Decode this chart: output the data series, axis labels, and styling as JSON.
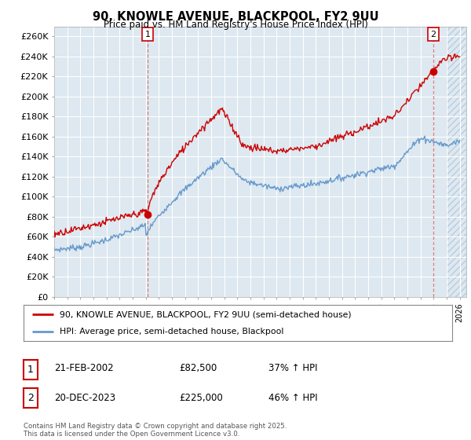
{
  "title": "90, KNOWLE AVENUE, BLACKPOOL, FY2 9UU",
  "subtitle": "Price paid vs. HM Land Registry's House Price Index (HPI)",
  "ylabel_ticks": [
    "£0",
    "£20K",
    "£40K",
    "£60K",
    "£80K",
    "£100K",
    "£120K",
    "£140K",
    "£160K",
    "£180K",
    "£200K",
    "£220K",
    "£240K",
    "£260K"
  ],
  "ytick_values": [
    0,
    20000,
    40000,
    60000,
    80000,
    100000,
    120000,
    140000,
    160000,
    180000,
    200000,
    220000,
    240000,
    260000
  ],
  "ylim": [
    0,
    270000
  ],
  "xlim_start": 1995.0,
  "xlim_end": 2026.5,
  "line1_label": "90, KNOWLE AVENUE, BLACKPOOL, FY2 9UU (semi-detached house)",
  "line2_label": "HPI: Average price, semi-detached house, Blackpool",
  "point1_date": "21-FEB-2002",
  "point1_price": "£82,500",
  "point1_hpi": "37% ↑ HPI",
  "point2_date": "20-DEC-2023",
  "point2_price": "£225,000",
  "point2_hpi": "46% ↑ HPI",
  "line1_color": "#cc0000",
  "line2_color": "#6699cc",
  "point1_x": 2002.13,
  "point1_y": 82500,
  "point2_x": 2023.97,
  "point2_y": 225000,
  "future_cutoff": 2025.0,
  "copyright_text": "Contains HM Land Registry data © Crown copyright and database right 2025.\nThis data is licensed under the Open Government Licence v3.0.",
  "background_color": "#ffffff",
  "chart_bg_color": "#dde8f0",
  "grid_color": "#ffffff"
}
